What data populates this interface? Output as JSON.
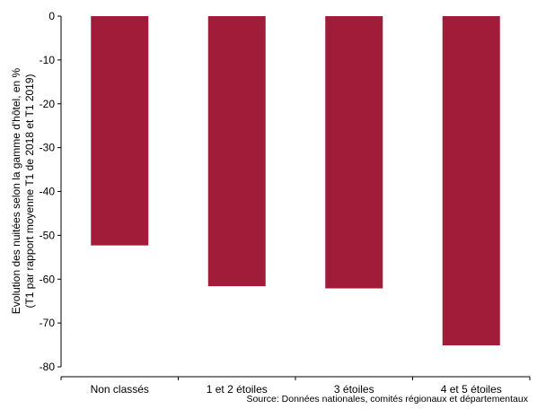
{
  "chart_data": {
    "type": "bar",
    "categories": [
      "Non classés",
      "1 et 2 étoiles",
      "3 étoiles",
      "4 et 5 étoiles"
    ],
    "values": [
      -52.3,
      -61.6,
      -62.1,
      -75.1
    ],
    "ylabel_lines": [
      "Evolution des nuitées selon la gamme d'hôtel, en %",
      "(T1 par rapport moyenne T1 de 2018 et T1 2019)"
    ],
    "ylim": [
      -80,
      0
    ],
    "yticks": [
      0,
      -10,
      -20,
      -30,
      -40,
      -50,
      -60,
      -70,
      -80
    ],
    "bar_color": "#A01C38",
    "grid": false
  },
  "source": "Source: Données nationales, comités régionaux et départementaux"
}
